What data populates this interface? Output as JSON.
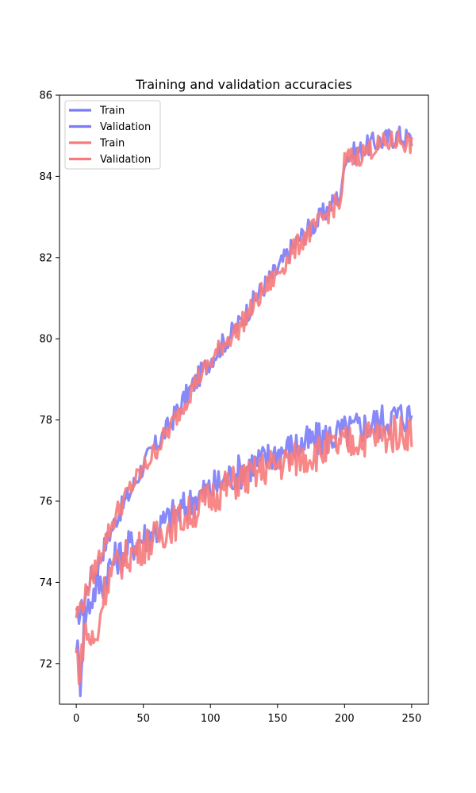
{
  "chart_data": {
    "type": "line",
    "title": "Training and validation accuracies",
    "xlabel": "",
    "ylabel": "",
    "xlim": [
      -12.5,
      262.5
    ],
    "ylim": [
      71,
      86
    ],
    "xticks": [
      0,
      50,
      100,
      150,
      200,
      250
    ],
    "yticks": [
      72,
      74,
      76,
      78,
      80,
      82,
      84,
      86
    ],
    "legend_position": "top-left",
    "grid": false,
    "series": [
      {
        "name": "Train",
        "color": "#7b7bf7",
        "x": [
          0,
          5,
          10,
          15,
          20,
          25,
          30,
          40,
          50,
          60,
          70,
          80,
          90,
          100,
          110,
          120,
          130,
          140,
          150,
          160,
          170,
          180,
          190,
          198,
          200,
          210,
          220,
          230,
          240,
          250
        ],
        "y": [
          73.1,
          73.4,
          74.1,
          74.3,
          74.8,
          75.2,
          75.6,
          76.2,
          76.9,
          77.4,
          77.9,
          78.5,
          79.0,
          79.5,
          79.9,
          80.3,
          80.8,
          81.3,
          81.7,
          82.2,
          82.6,
          82.9,
          83.3,
          83.6,
          84.5,
          84.6,
          84.8,
          84.9,
          85.0,
          84.9
        ]
      },
      {
        "name": "Validation",
        "color": "#7b7bf7",
        "x": [
          0,
          3,
          6,
          10,
          15,
          20,
          25,
          30,
          40,
          50,
          60,
          70,
          80,
          90,
          100,
          110,
          120,
          130,
          140,
          150,
          160,
          170,
          180,
          190,
          200,
          210,
          220,
          230,
          240,
          250
        ],
        "y": [
          72.6,
          71.6,
          73.2,
          73.5,
          73.9,
          74.0,
          74.4,
          74.6,
          74.9,
          75.1,
          75.3,
          75.6,
          75.8,
          76.1,
          76.3,
          76.5,
          76.7,
          76.9,
          77.0,
          77.2,
          77.3,
          77.4,
          77.5,
          77.6,
          77.7,
          77.8,
          77.9,
          78.0,
          78.1,
          78.1
        ]
      },
      {
        "name": "Train",
        "color": "#f77b7b",
        "x": [
          0,
          5,
          10,
          15,
          20,
          25,
          30,
          40,
          50,
          60,
          70,
          80,
          90,
          100,
          110,
          120,
          130,
          140,
          150,
          160,
          170,
          180,
          190,
          198,
          200,
          210,
          220,
          230,
          240,
          250
        ],
        "y": [
          73.2,
          73.5,
          74.0,
          74.4,
          74.9,
          75.3,
          75.7,
          76.3,
          76.8,
          77.3,
          77.8,
          78.4,
          79.0,
          79.4,
          79.9,
          80.2,
          80.7,
          81.2,
          81.6,
          82.1,
          82.5,
          82.8,
          83.2,
          83.4,
          84.4,
          84.5,
          84.7,
          84.8,
          84.9,
          84.8
        ]
      },
      {
        "name": "Validation",
        "color": "#f77b7b",
        "x": [
          0,
          3,
          6,
          10,
          15,
          20,
          25,
          30,
          40,
          50,
          60,
          70,
          80,
          90,
          100,
          110,
          120,
          130,
          140,
          150,
          160,
          170,
          180,
          190,
          200,
          210,
          220,
          230,
          240,
          250
        ],
        "y": [
          72.3,
          71.7,
          72.9,
          72.6,
          72.5,
          73.7,
          74.2,
          74.4,
          74.7,
          74.9,
          75.1,
          75.4,
          75.6,
          75.8,
          76.1,
          76.3,
          76.5,
          76.6,
          76.8,
          76.9,
          77.0,
          77.1,
          77.2,
          77.3,
          77.4,
          77.5,
          77.6,
          77.6,
          77.7,
          77.7
        ]
      }
    ]
  }
}
